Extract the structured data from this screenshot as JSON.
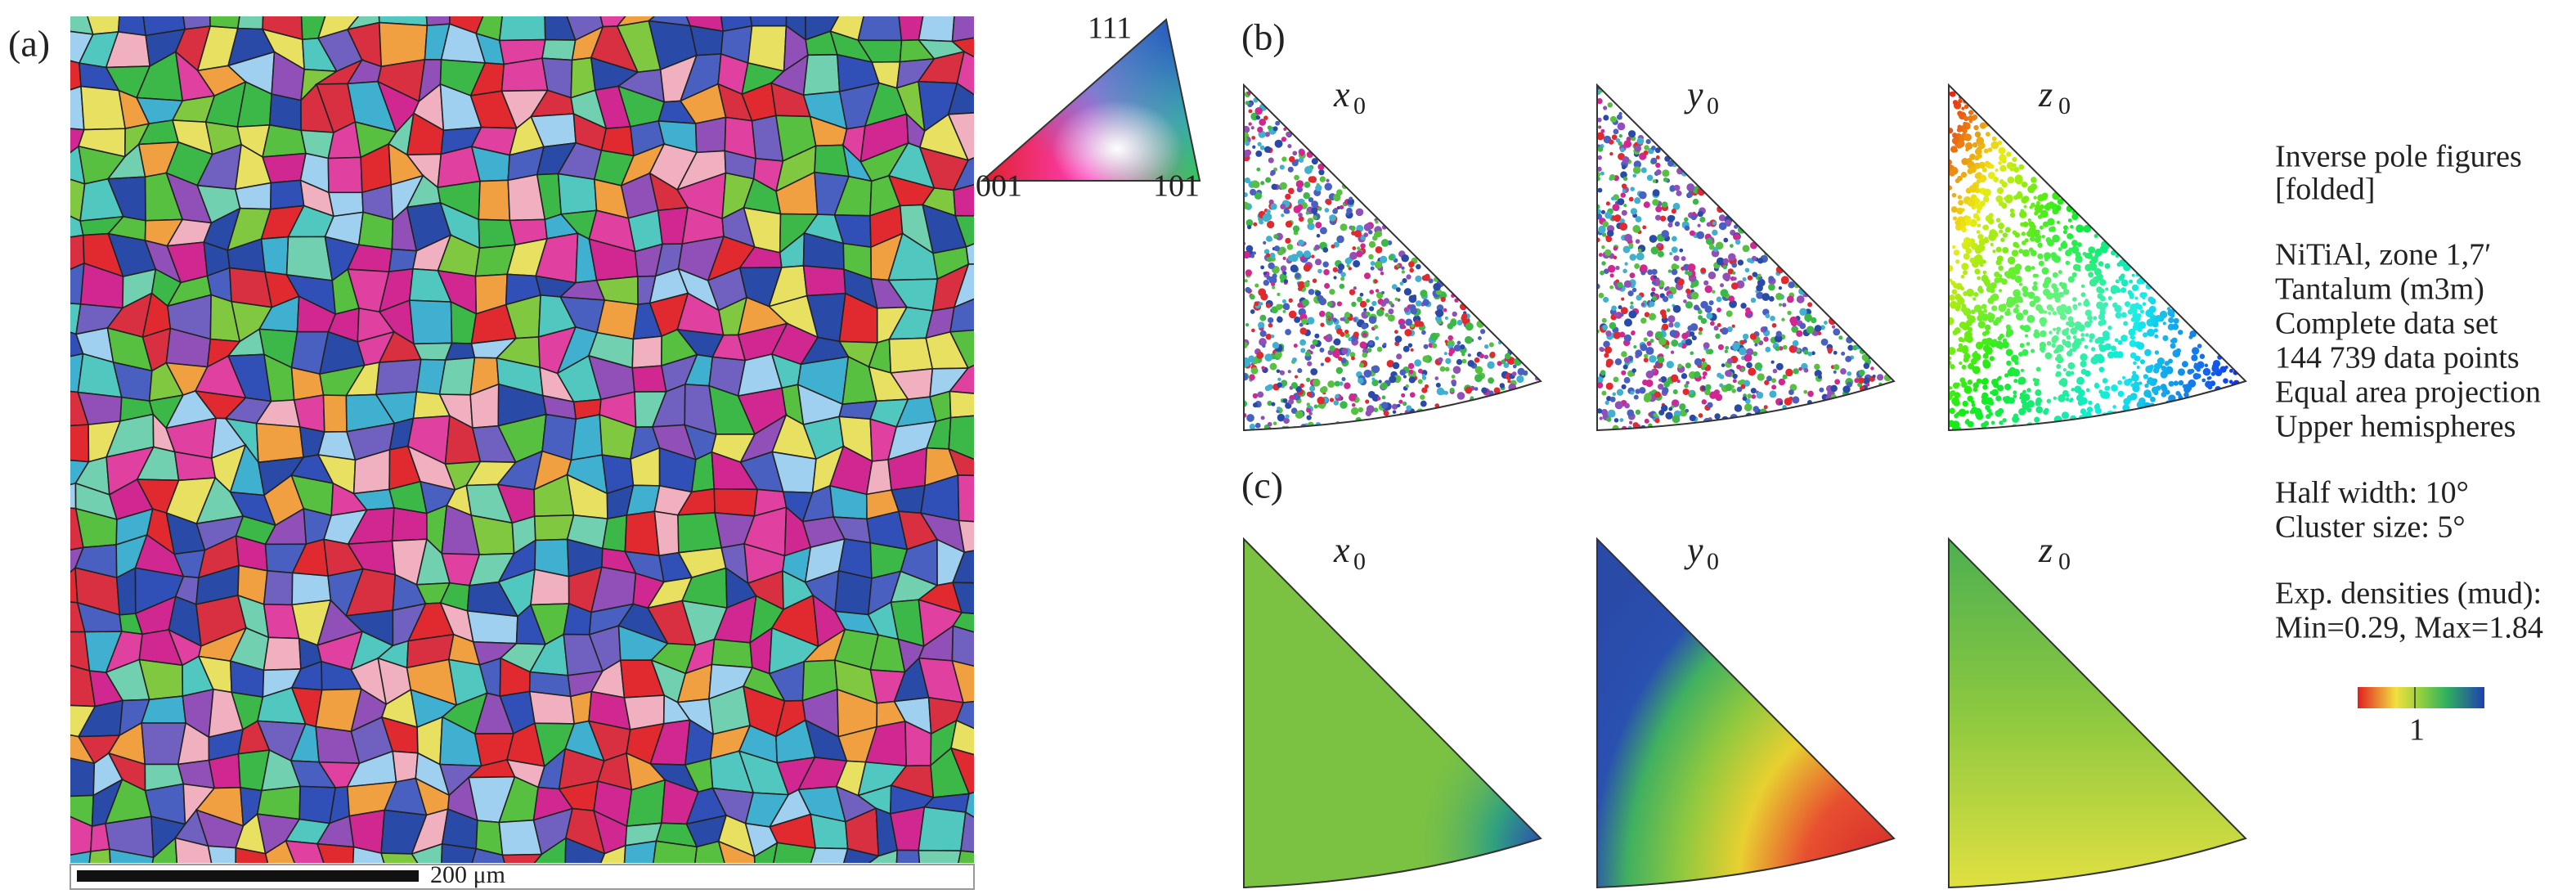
{
  "panels": {
    "a": "(a)",
    "b": "(b)",
    "c": "(c)"
  },
  "ipf_key": {
    "top": "111",
    "left": "001",
    "right": "101"
  },
  "scale_bar": "200 μm",
  "columns": [
    {
      "var": "x",
      "sub": "0"
    },
    {
      "var": "y",
      "sub": "0"
    },
    {
      "var": "z",
      "sub": "0"
    }
  ],
  "info": [
    "Inverse pole figures",
    "[folded]",
    "NiTiAl, zone 1,7′",
    "Tantalum (m3m)",
    "Complete data set",
    "144 739 data points",
    "Equal area projection",
    "Upper hemispheres",
    "Half width: 10°",
    "Cluster size: 5°",
    "Exp. densities (mud):",
    "Min=0.29, Max=1.84"
  ],
  "colorbar_label": "1"
}
